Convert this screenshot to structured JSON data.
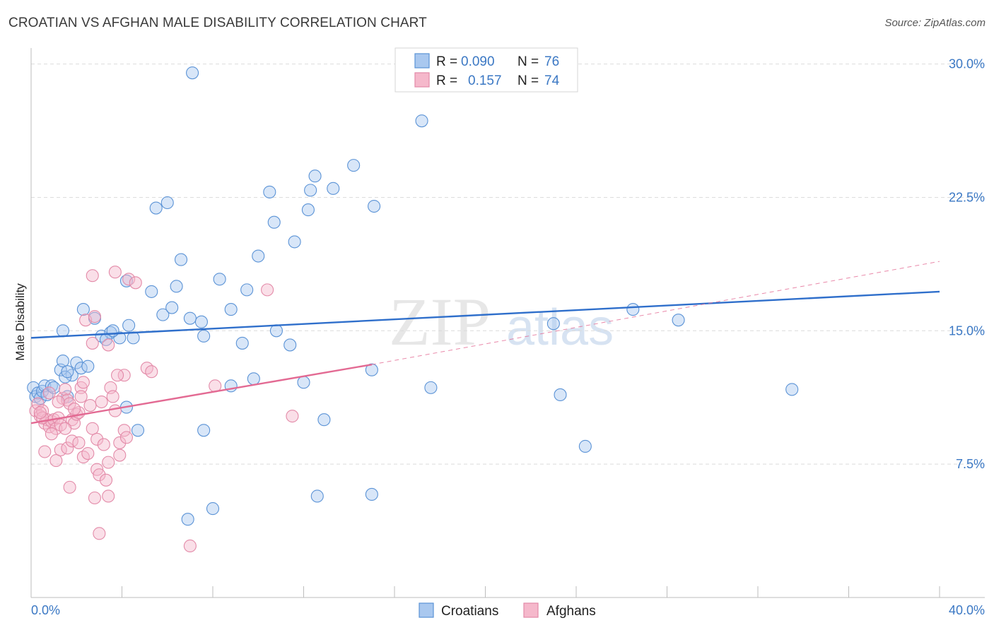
{
  "header": {
    "title": "CROATIAN VS AFGHAN MALE DISABILITY CORRELATION CHART",
    "source": "Source: ZipAtlas.com"
  },
  "watermark": {
    "zip": "ZIP",
    "atlas": "atlas"
  },
  "legend_top": {
    "rows": [
      {
        "r_label": "R =",
        "r_value": "0.090",
        "n_label": "N =",
        "n_value": "76"
      },
      {
        "r_label": "R =",
        "r_value": "0.157",
        "n_label": "N =",
        "n_value": "74"
      }
    ]
  },
  "legend_bottom": {
    "croatians": "Croatians",
    "afghans": "Afghans"
  },
  "colors": {
    "croatians_fill": "#a9c8ef",
    "croatians_stroke": "#5b93d6",
    "croatians_line": "#2f6fcb",
    "afghans_fill": "#f5b8cb",
    "afghans_stroke": "#e38aa8",
    "afghans_line": "#e36a93",
    "tick_text": "#3b78c4",
    "grid": "#dcdcdc"
  },
  "chart_data": {
    "type": "scatter",
    "title": "CROATIAN VS AFGHAN MALE DISABILITY CORRELATION CHART",
    "xlabel": "",
    "ylabel": "Male Disability",
    "xlim": [
      0,
      40
    ],
    "ylim": [
      0,
      30.5
    ],
    "x_tick_labels": [
      "0.0%",
      "40.0%"
    ],
    "y_ticks": [
      7.5,
      15.0,
      22.5,
      30.0
    ],
    "y_tick_labels": [
      "7.5%",
      "15.0%",
      "22.5%",
      "30.0%"
    ],
    "grid": true,
    "series": [
      {
        "name": "Croatians",
        "R": 0.09,
        "N": 76,
        "trend": {
          "x": [
            0,
            40
          ],
          "y": [
            14.6,
            17.2
          ]
        },
        "points": [
          [
            0.1,
            11.8
          ],
          [
            0.2,
            11.3
          ],
          [
            0.3,
            11.5
          ],
          [
            0.4,
            11.2
          ],
          [
            0.5,
            11.6
          ],
          [
            0.6,
            11.9
          ],
          [
            0.7,
            11.4
          ],
          [
            0.9,
            11.9
          ],
          [
            1.0,
            11.8
          ],
          [
            1.3,
            12.8
          ],
          [
            1.4,
            13.3
          ],
          [
            1.6,
            11.3
          ],
          [
            1.8,
            12.5
          ],
          [
            2.0,
            13.2
          ],
          [
            2.2,
            12.9
          ],
          [
            2.5,
            13.0
          ],
          [
            1.5,
            12.4
          ],
          [
            1.6,
            12.7
          ],
          [
            1.4,
            15.0
          ],
          [
            2.3,
            16.2
          ],
          [
            2.8,
            15.7
          ],
          [
            3.1,
            14.7
          ],
          [
            3.5,
            14.9
          ],
          [
            3.9,
            14.6
          ],
          [
            4.3,
            15.3
          ],
          [
            4.5,
            14.6
          ],
          [
            3.3,
            14.5
          ],
          [
            3.6,
            15.0
          ],
          [
            4.2,
            17.8
          ],
          [
            5.3,
            17.2
          ],
          [
            5.8,
            15.9
          ],
          [
            6.2,
            16.3
          ],
          [
            6.4,
            17.5
          ],
          [
            6.6,
            19.0
          ],
          [
            7.0,
            15.7
          ],
          [
            7.5,
            15.5
          ],
          [
            7.6,
            14.7
          ],
          [
            8.3,
            17.9
          ],
          [
            8.8,
            16.2
          ],
          [
            9.3,
            14.3
          ],
          [
            9.5,
            17.3
          ],
          [
            10.0,
            19.2
          ],
          [
            10.5,
            22.8
          ],
          [
            10.7,
            21.1
          ],
          [
            11.6,
            20.0
          ],
          [
            12.2,
            21.8
          ],
          [
            12.3,
            22.9
          ],
          [
            12.5,
            23.7
          ],
          [
            13.3,
            23.0
          ],
          [
            14.2,
            24.3
          ],
          [
            15.1,
            22.0
          ],
          [
            5.5,
            21.9
          ],
          [
            6.0,
            22.2
          ],
          [
            7.1,
            29.5
          ],
          [
            4.2,
            10.7
          ],
          [
            4.7,
            9.4
          ],
          [
            7.6,
            9.4
          ],
          [
            8.8,
            11.9
          ],
          [
            12.0,
            12.1
          ],
          [
            12.9,
            10.0
          ],
          [
            15.0,
            12.8
          ],
          [
            17.2,
            26.8
          ],
          [
            17.6,
            11.8
          ],
          [
            23.0,
            15.4
          ],
          [
            23.3,
            11.4
          ],
          [
            24.4,
            8.5
          ],
          [
            26.5,
            16.2
          ],
          [
            28.5,
            15.6
          ],
          [
            33.5,
            11.7
          ],
          [
            12.6,
            5.7
          ],
          [
            15.0,
            5.8
          ],
          [
            8.0,
            5.0
          ],
          [
            6.9,
            4.4
          ],
          [
            10.8,
            15.0
          ],
          [
            9.8,
            12.3
          ],
          [
            11.4,
            14.2
          ]
        ]
      },
      {
        "name": "Afghans",
        "R": 0.157,
        "N": 74,
        "trend": {
          "x": [
            0,
            15
          ],
          "y": [
            9.8,
            13.1
          ]
        },
        "trend_dashed": {
          "x": [
            15,
            40
          ],
          "y": [
            13.1,
            18.9
          ]
        },
        "points": [
          [
            0.2,
            10.5
          ],
          [
            0.3,
            10.9
          ],
          [
            0.4,
            10.2
          ],
          [
            0.5,
            10.5
          ],
          [
            0.6,
            9.8
          ],
          [
            0.7,
            10.0
          ],
          [
            0.8,
            9.6
          ],
          [
            0.9,
            9.9
          ],
          [
            1.0,
            10.0
          ],
          [
            1.1,
            9.5
          ],
          [
            1.2,
            10.1
          ],
          [
            1.3,
            9.7
          ],
          [
            1.4,
            11.2
          ],
          [
            1.5,
            11.7
          ],
          [
            1.6,
            11.1
          ],
          [
            1.7,
            10.9
          ],
          [
            1.8,
            10.0
          ],
          [
            1.9,
            9.8
          ],
          [
            2.0,
            10.3
          ],
          [
            2.1,
            10.4
          ],
          [
            2.2,
            11.8
          ],
          [
            2.3,
            12.1
          ],
          [
            2.6,
            10.8
          ],
          [
            2.7,
            9.5
          ],
          [
            0.9,
            9.2
          ],
          [
            1.2,
            11.0
          ],
          [
            1.9,
            10.6
          ],
          [
            0.6,
            8.2
          ],
          [
            1.1,
            7.7
          ],
          [
            1.3,
            8.3
          ],
          [
            1.6,
            8.4
          ],
          [
            1.8,
            8.8
          ],
          [
            2.1,
            8.7
          ],
          [
            2.3,
            7.9
          ],
          [
            2.5,
            8.1
          ],
          [
            2.9,
            8.9
          ],
          [
            3.2,
            8.6
          ],
          [
            3.4,
            7.6
          ],
          [
            2.4,
            15.6
          ],
          [
            2.7,
            14.3
          ],
          [
            2.8,
            15.8
          ],
          [
            3.4,
            14.2
          ],
          [
            3.5,
            11.8
          ],
          [
            3.6,
            11.3
          ],
          [
            3.7,
            10.5
          ],
          [
            4.1,
            9.4
          ],
          [
            4.3,
            17.9
          ],
          [
            4.6,
            17.7
          ],
          [
            3.7,
            18.3
          ],
          [
            2.7,
            18.1
          ],
          [
            5.1,
            12.9
          ],
          [
            5.3,
            12.7
          ],
          [
            4.1,
            12.5
          ],
          [
            3.1,
            11.0
          ],
          [
            3.9,
            8.7
          ],
          [
            3.9,
            8.0
          ],
          [
            2.9,
            7.2
          ],
          [
            3.0,
            6.9
          ],
          [
            3.3,
            6.6
          ],
          [
            3.4,
            5.7
          ],
          [
            2.8,
            5.6
          ],
          [
            1.7,
            6.2
          ],
          [
            3.0,
            3.6
          ],
          [
            7.0,
            2.9
          ],
          [
            8.1,
            11.9
          ],
          [
            10.4,
            17.3
          ],
          [
            11.5,
            10.2
          ],
          [
            4.2,
            9.0
          ],
          [
            0.5,
            10.1
          ],
          [
            0.4,
            10.4
          ],
          [
            1.5,
            9.5
          ],
          [
            2.2,
            11.3
          ],
          [
            3.8,
            12.5
          ],
          [
            0.8,
            11.5
          ]
        ]
      }
    ]
  }
}
